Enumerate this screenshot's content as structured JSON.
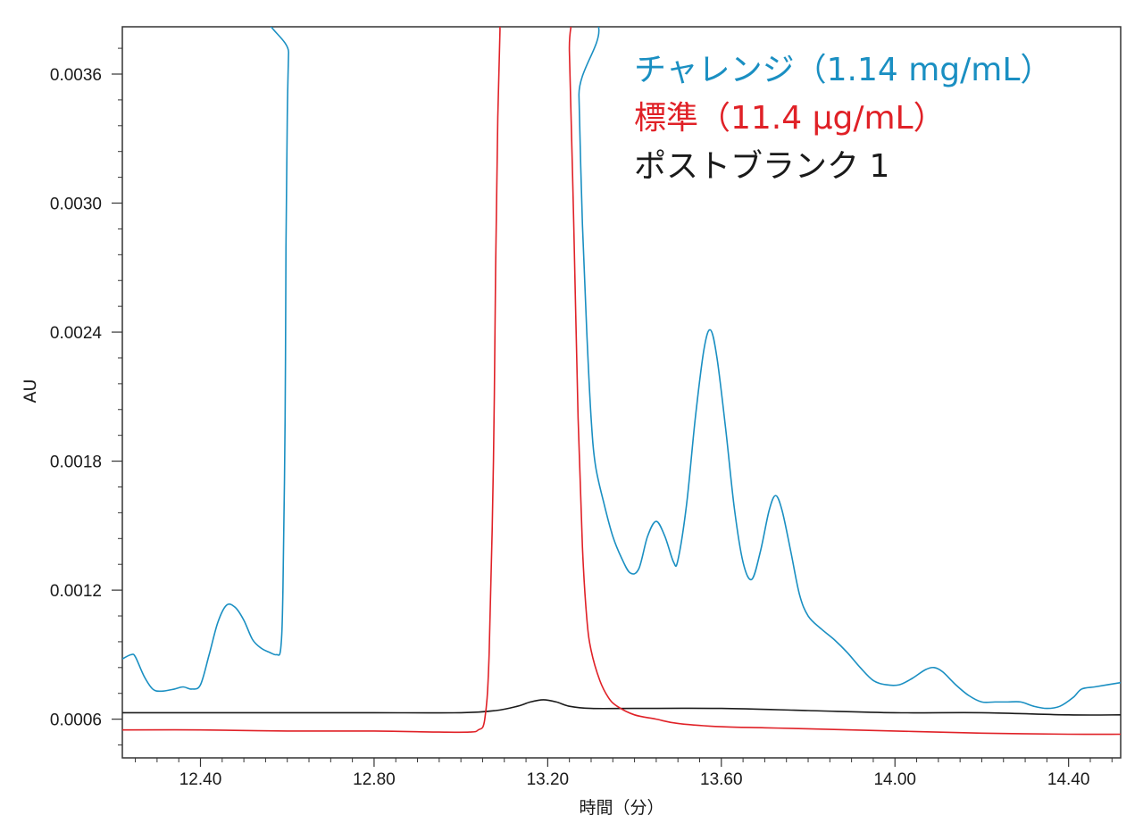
{
  "chart_data": {
    "type": "line",
    "title": "",
    "xlabel": "時間（分）",
    "ylabel": "AU",
    "xlim": [
      12.22,
      14.52
    ],
    "ylim": [
      0.00042,
      0.00382
    ],
    "x_ticks": [
      12.4,
      12.8,
      13.2,
      13.6,
      14.0,
      14.4
    ],
    "x_tick_labels": [
      "12.40",
      "12.80",
      "13.20",
      "13.60",
      "14.00",
      "14.40"
    ],
    "y_ticks": [
      0.0006,
      0.0012,
      0.0018,
      0.0024,
      0.003,
      0.0036
    ],
    "y_tick_labels": [
      "0.0006",
      "0.0012",
      "0.0018",
      "0.0024",
      "0.0030",
      "0.0036"
    ],
    "grid": false,
    "legend_position": "top-right",
    "series": [
      {
        "name": "チャレンジ（1.14 mg/mL）",
        "color": "#1a8fc2",
        "x": [
          12.22,
          12.24,
          12.25,
          12.27,
          12.29,
          12.31,
          12.34,
          12.36,
          12.38,
          12.4,
          12.42,
          12.44,
          12.46,
          12.48,
          12.5,
          12.52,
          12.54,
          12.56,
          12.575,
          12.585,
          12.59,
          12.595,
          12.597,
          12.6,
          12.603,
          12.606,
          13.268,
          13.272,
          13.28,
          13.29,
          13.3,
          13.31,
          13.33,
          13.35,
          13.37,
          13.39,
          13.41,
          13.43,
          13.45,
          13.47,
          13.49,
          13.5,
          13.52,
          13.54,
          13.56,
          13.575,
          13.59,
          13.61,
          13.63,
          13.65,
          13.67,
          13.69,
          13.71,
          13.725,
          13.74,
          13.76,
          13.78,
          13.8,
          13.83,
          13.86,
          13.89,
          13.92,
          13.95,
          13.98,
          14.01,
          14.04,
          14.07,
          14.09,
          14.11,
          14.14,
          14.17,
          14.2,
          14.23,
          14.26,
          14.29,
          14.32,
          14.35,
          14.38,
          14.41,
          14.43,
          14.46,
          14.49,
          14.52
        ],
        "values": [
          0.00088,
          0.0009,
          0.00089,
          0.0008,
          0.00074,
          0.00073,
          0.00074,
          0.00075,
          0.00074,
          0.00076,
          0.0009,
          0.00105,
          0.00113,
          0.00112,
          0.00106,
          0.00097,
          0.00093,
          0.00091,
          0.0009,
          0.00093,
          0.0012,
          0.002,
          0.0028,
          0.0034,
          0.0037,
          0.0039,
          0.0039,
          0.0035,
          0.0029,
          0.0024,
          0.002,
          0.00178,
          0.0016,
          0.00145,
          0.00135,
          0.00128,
          0.0013,
          0.00145,
          0.00152,
          0.00145,
          0.00133,
          0.00134,
          0.0016,
          0.002,
          0.00232,
          0.00241,
          0.00228,
          0.00195,
          0.00158,
          0.00133,
          0.00125,
          0.00138,
          0.00157,
          0.00164,
          0.00157,
          0.00138,
          0.00118,
          0.00108,
          0.00102,
          0.00097,
          0.00091,
          0.00084,
          0.00078,
          0.00076,
          0.00076,
          0.00079,
          0.00083,
          0.00084,
          0.00082,
          0.00076,
          0.00071,
          0.00068,
          0.00068,
          0.00068,
          0.00068,
          0.00066,
          0.00065,
          0.00066,
          0.0007,
          0.00074,
          0.00075,
          0.00076,
          0.00077
        ]
      },
      {
        "name": "標準（11.4 μg/mL）",
        "color": "#e02127",
        "x": [
          12.22,
          12.4,
          12.6,
          12.8,
          12.95,
          13.02,
          13.04,
          13.055,
          13.065,
          13.075,
          13.08,
          13.085,
          13.09,
          13.095,
          13.245,
          13.25,
          13.26,
          13.27,
          13.28,
          13.29,
          13.3,
          13.32,
          13.34,
          13.36,
          13.4,
          13.45,
          13.5,
          13.6,
          13.7,
          13.8,
          14.0,
          14.2,
          14.4,
          14.52
        ],
        "values": [
          0.00055,
          0.00055,
          0.000545,
          0.000545,
          0.00054,
          0.00054,
          0.00055,
          0.0006,
          0.0009,
          0.0018,
          0.0027,
          0.0034,
          0.0038,
          0.0039,
          0.0039,
          0.0037,
          0.0029,
          0.002,
          0.0014,
          0.00107,
          0.00092,
          0.00078,
          0.0007,
          0.00066,
          0.00062,
          0.0006,
          0.00058,
          0.000565,
          0.00056,
          0.000555,
          0.000545,
          0.000535,
          0.00053,
          0.00053
        ]
      },
      {
        "name": "ポストブランク 1",
        "color": "#1a1a1a",
        "x": [
          12.22,
          12.4,
          12.6,
          12.8,
          13.0,
          13.08,
          13.13,
          13.16,
          13.19,
          13.22,
          13.25,
          13.3,
          13.4,
          13.6,
          13.8,
          14.0,
          14.2,
          14.4,
          14.52
        ],
        "values": [
          0.00063,
          0.00063,
          0.00063,
          0.00063,
          0.00063,
          0.00064,
          0.00066,
          0.00068,
          0.00069,
          0.00068,
          0.00066,
          0.00065,
          0.00065,
          0.00065,
          0.00064,
          0.00063,
          0.00063,
          0.00062,
          0.00062
        ]
      }
    ]
  }
}
